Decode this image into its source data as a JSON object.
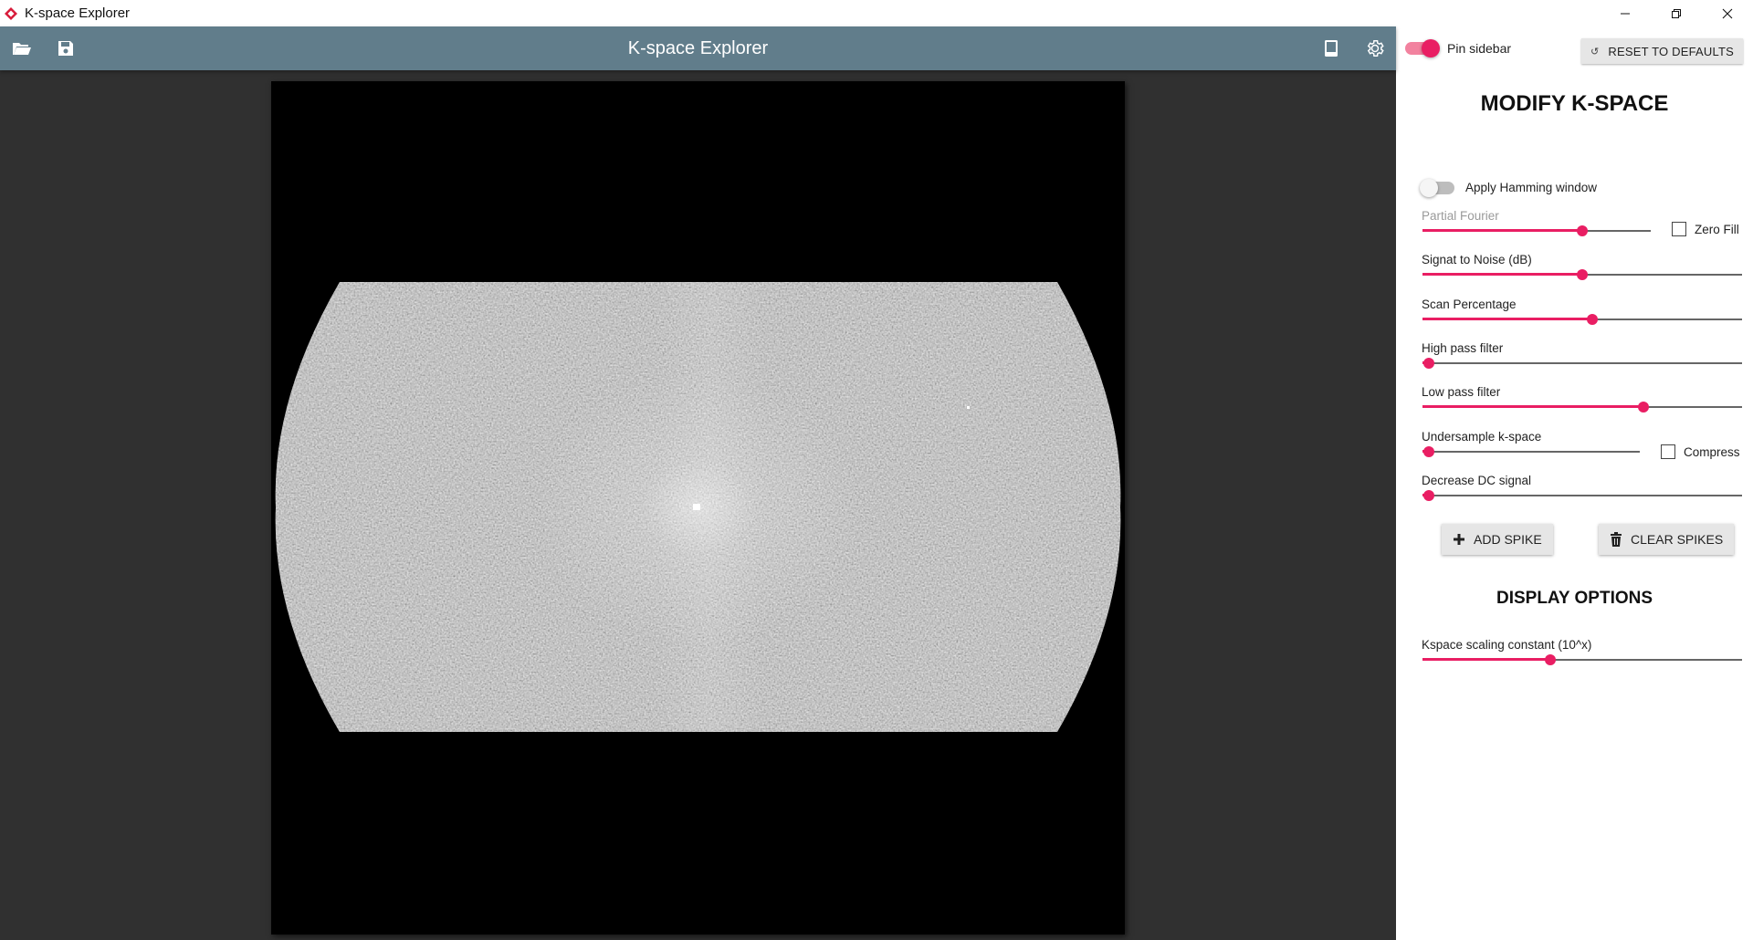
{
  "window": {
    "title": "K-space Explorer"
  },
  "toolbar": {
    "title": "K-space Explorer"
  },
  "sidebar": {
    "pin": {
      "label": "Pin sidebar",
      "checked": true
    },
    "reset_label": "RESET TO DEFAULTS",
    "modify_title": "MODIFY K-SPACE",
    "hamming": {
      "label": "Apply Hamming window",
      "checked": false
    },
    "sliders": [
      {
        "label": "Partial Fourier",
        "value": 0.7
      },
      {
        "label": "Signat to Noise (dB)",
        "value": 0.5
      },
      {
        "label": "Scan Percentage",
        "value": 0.53
      },
      {
        "label": "High pass filter",
        "value": 0.02
      },
      {
        "label": "Low pass filter",
        "value": 0.69
      },
      {
        "label": "Undersample k-space",
        "value": 0.03
      },
      {
        "label": "Decrease DC signal",
        "value": 0.02
      }
    ],
    "zero_fill_label": "Zero Fill",
    "compress_label": "Compress",
    "add_spike_label": "ADD SPIKE",
    "clear_spikes_label": "CLEAR SPIKES",
    "display_title": "DISPLAY OPTIONS",
    "scaling": {
      "label": "Kspace scaling constant (10^x)",
      "value": 0.4
    }
  },
  "colors": {
    "accent": "#e91e63",
    "toolbar": "#617d8b",
    "canvas_bg": "#303030"
  }
}
